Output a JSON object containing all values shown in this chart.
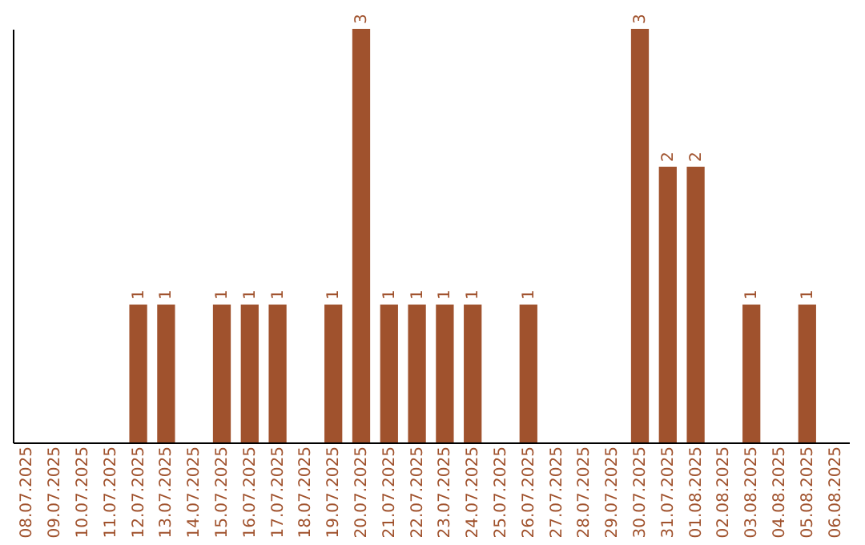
{
  "chart_data": {
    "type": "bar",
    "categories": [
      "08.07.2025",
      "09.07.2025",
      "10.07.2025",
      "11.07.2025",
      "12.07.2025",
      "13.07.2025",
      "14.07.2025",
      "15.07.2025",
      "16.07.2025",
      "17.07.2025",
      "18.07.2025",
      "19.07.2025",
      "20.07.2025",
      "21.07.2025",
      "22.07.2025",
      "23.07.2025",
      "24.07.2025",
      "25.07.2025",
      "26.07.2025",
      "27.07.2025",
      "28.07.2025",
      "29.07.2025",
      "30.07.2025",
      "31.07.2025",
      "01.08.2025",
      "02.08.2025",
      "03.08.2025",
      "04.08.2025",
      "05.08.2025",
      "06.08.2025"
    ],
    "values": [
      0,
      0,
      0,
      0,
      1,
      1,
      0,
      1,
      1,
      1,
      0,
      1,
      3,
      1,
      1,
      1,
      1,
      0,
      1,
      0,
      0,
      0,
      3,
      2,
      2,
      0,
      1,
      0,
      1,
      0
    ],
    "value_labels": [
      null,
      null,
      null,
      null,
      "1",
      "1",
      null,
      "1",
      "1",
      "1",
      null,
      "1",
      "3",
      "1",
      "1",
      "1",
      "1",
      null,
      "1",
      null,
      null,
      null,
      "3",
      "2",
      "2",
      null,
      "1",
      null,
      "1",
      null
    ],
    "color": "#a0522d",
    "tick_labels": "x",
    "grid": false
  }
}
